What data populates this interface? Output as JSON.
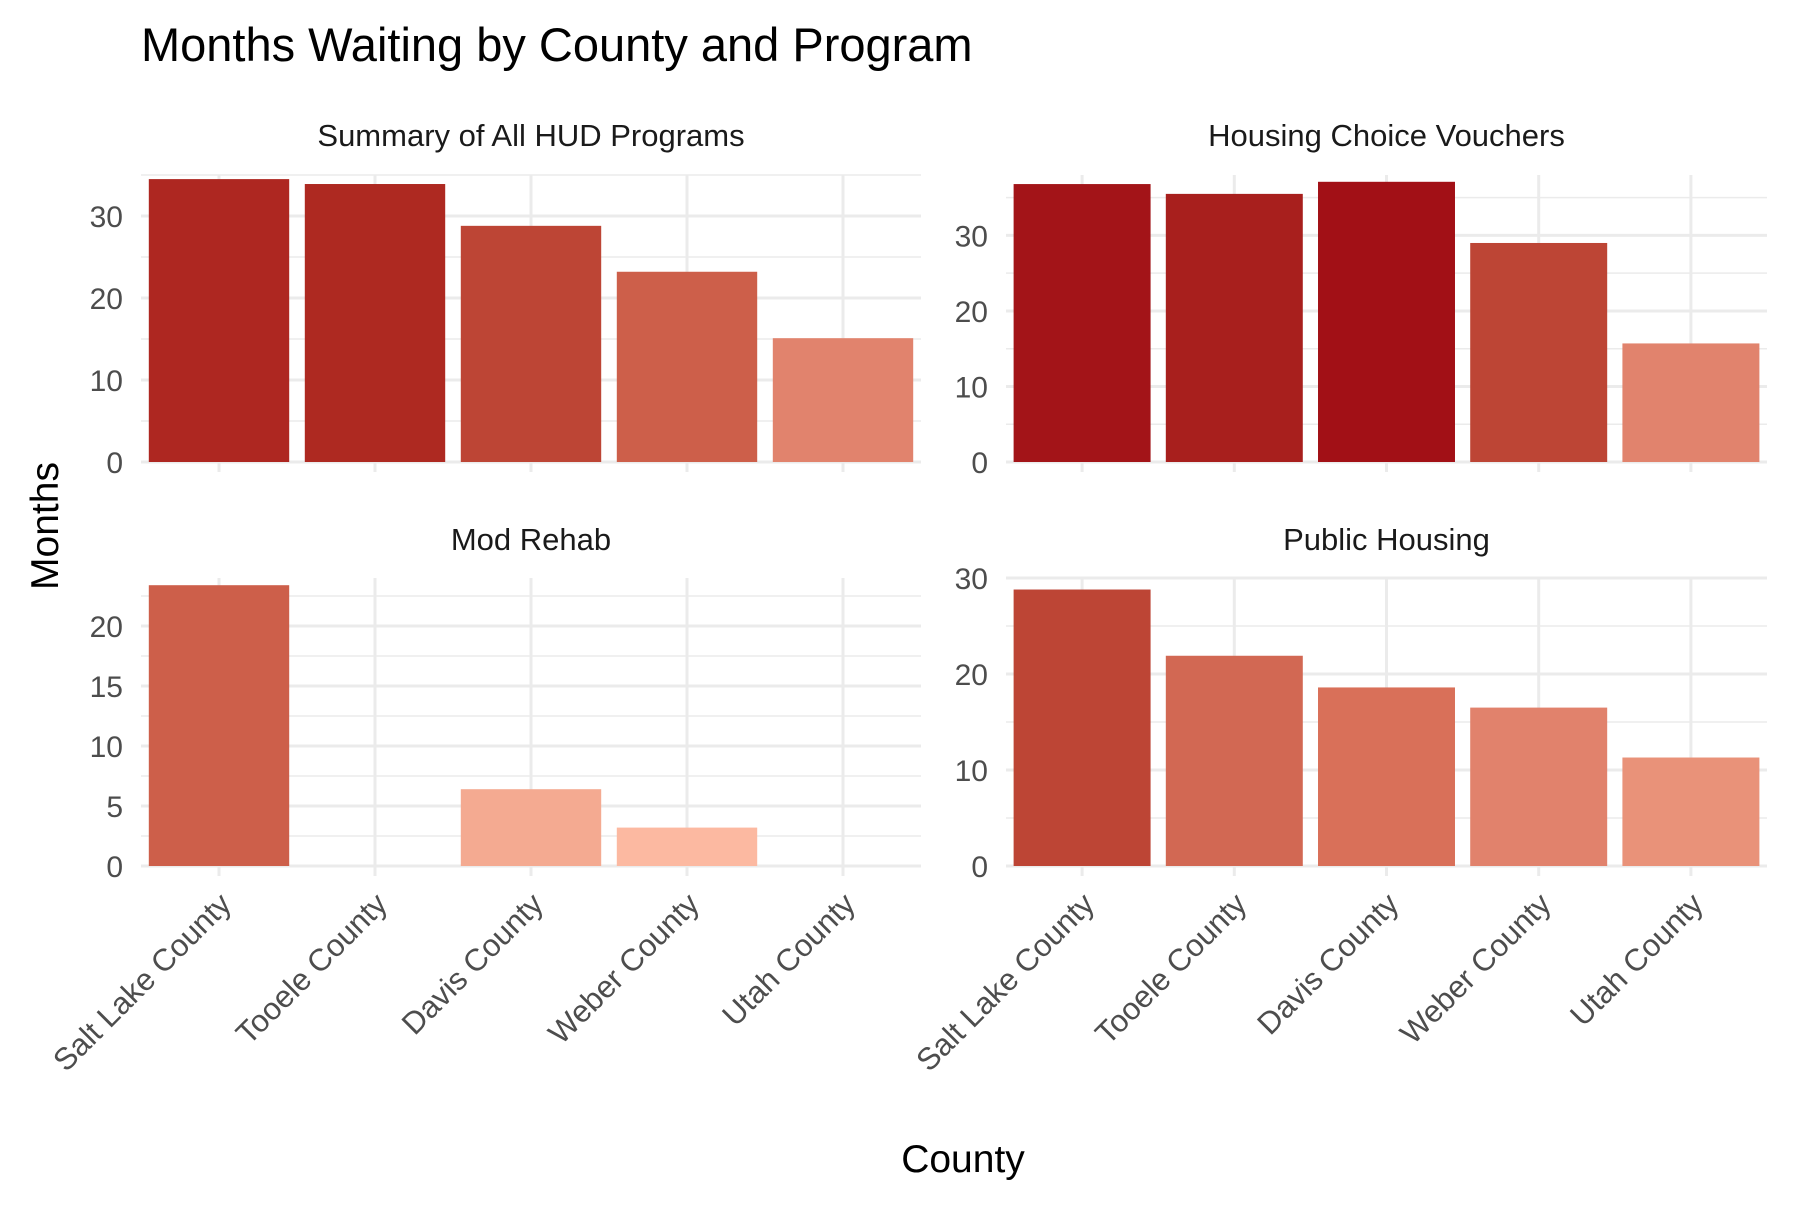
{
  "chart_data": {
    "type": "bar",
    "title": "Months Waiting by County and Program",
    "xlabel": "County",
    "ylabel": "Months",
    "categories": [
      "Salt Lake County",
      "Tooele County",
      "Davis County",
      "Weber County",
      "Utah County"
    ],
    "grid": true,
    "legend": "none",
    "facets": [
      {
        "name": "Summary of All HUD Programs",
        "values": [
          34.5,
          33.9,
          28.8,
          23.2,
          15.1
        ],
        "ylim": [
          0,
          35
        ],
        "yticks": [
          0,
          10,
          20,
          30
        ],
        "colors": [
          "#ae2721",
          "#ae2921",
          "#bd4535",
          "#cd5f4a",
          "#e1836d"
        ]
      },
      {
        "name": "Housing Choice Vouchers",
        "values": [
          36.8,
          35.5,
          37.1,
          29.0,
          15.7
        ],
        "ylim": [
          0,
          38
        ],
        "yticks": [
          0,
          10,
          20,
          30
        ],
        "colors": [
          "#a31418",
          "#a81f1d",
          "#a21016",
          "#bd4535",
          "#e1836d"
        ]
      },
      {
        "name": "Mod Rehab",
        "values": [
          23.4,
          0,
          6.4,
          3.2,
          0
        ],
        "ylim": [
          0,
          24
        ],
        "yticks": [
          0,
          5,
          10,
          15,
          20
        ],
        "colors": [
          "#cd5f4a",
          "#cd5f4a",
          "#f4aa91",
          "#fcb9a1",
          "#fcb9a1"
        ]
      },
      {
        "name": "Public Housing",
        "values": [
          28.8,
          21.9,
          18.6,
          16.5,
          11.3
        ],
        "ylim": [
          0,
          30
        ],
        "yticks": [
          0,
          10,
          20,
          30
        ],
        "colors": [
          "#bd4535",
          "#d26853",
          "#d97059",
          "#e1826c",
          "#e99279"
        ]
      }
    ]
  }
}
